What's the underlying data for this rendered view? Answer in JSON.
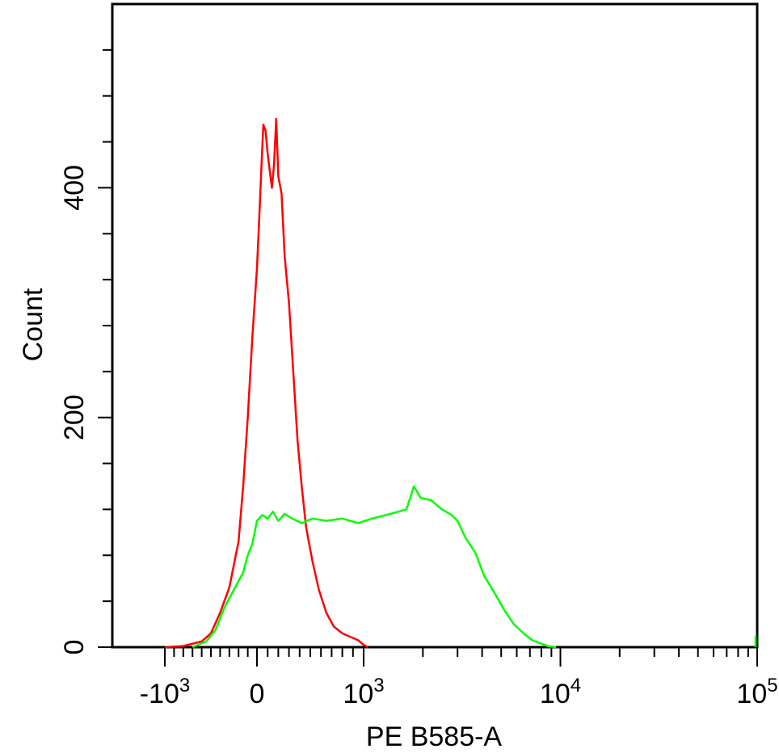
{
  "chart_data": {
    "type": "line",
    "xlabel": "PE B585-A",
    "ylabel": "Count",
    "x_scale": "biexponential",
    "x_ticks": [
      {
        "value": -1000,
        "base": "-10",
        "exp": "3"
      },
      {
        "value": 0,
        "base": "0",
        "exp": ""
      },
      {
        "value": 1000,
        "base": "10",
        "exp": "3"
      },
      {
        "value": 10000,
        "base": "10",
        "exp": "4"
      },
      {
        "value": 100000,
        "base": "10",
        "exp": "5"
      }
    ],
    "y_ticks": [
      {
        "value": 0,
        "label": "0"
      },
      {
        "value": 200,
        "label": "200"
      },
      {
        "value": 400,
        "label": "400"
      }
    ],
    "ylim": [
      0,
      560
    ],
    "grid": false,
    "series": [
      {
        "color": "#ff0000",
        "points": [
          [
            -1000,
            0
          ],
          [
            -800,
            1
          ],
          [
            -600,
            5
          ],
          [
            -500,
            12
          ],
          [
            -400,
            30
          ],
          [
            -300,
            52
          ],
          [
            -200,
            92
          ],
          [
            -150,
            140
          ],
          [
            -100,
            200
          ],
          [
            -50,
            270
          ],
          [
            0,
            330
          ],
          [
            20,
            370
          ],
          [
            40,
            415
          ],
          [
            60,
            455
          ],
          [
            80,
            450
          ],
          [
            100,
            430
          ],
          [
            120,
            415
          ],
          [
            140,
            400
          ],
          [
            160,
            420
          ],
          [
            180,
            460
          ],
          [
            200,
            410
          ],
          [
            230,
            395
          ],
          [
            260,
            340
          ],
          [
            300,
            300
          ],
          [
            340,
            240
          ],
          [
            380,
            180
          ],
          [
            420,
            140
          ],
          [
            460,
            105
          ],
          [
            520,
            75
          ],
          [
            580,
            50
          ],
          [
            650,
            30
          ],
          [
            720,
            18
          ],
          [
            800,
            12
          ],
          [
            900,
            8
          ],
          [
            950,
            6
          ],
          [
            1000,
            2
          ],
          [
            1050,
            0
          ]
        ]
      },
      {
        "color": "#00ff00",
        "points": [
          [
            -700,
            0
          ],
          [
            -550,
            5
          ],
          [
            -450,
            15
          ],
          [
            -350,
            35
          ],
          [
            -250,
            50
          ],
          [
            -150,
            65
          ],
          [
            -100,
            80
          ],
          [
            -50,
            90
          ],
          [
            0,
            110
          ],
          [
            50,
            115
          ],
          [
            100,
            112
          ],
          [
            150,
            118
          ],
          [
            200,
            110
          ],
          [
            260,
            116
          ],
          [
            330,
            112
          ],
          [
            420,
            108
          ],
          [
            520,
            112
          ],
          [
            650,
            110
          ],
          [
            800,
            112
          ],
          [
            950,
            108
          ],
          [
            1100,
            112
          ],
          [
            1300,
            115
          ],
          [
            1500,
            118
          ],
          [
            1650,
            120
          ],
          [
            1800,
            140
          ],
          [
            1950,
            130
          ],
          [
            2200,
            128
          ],
          [
            2500,
            120
          ],
          [
            2800,
            115
          ],
          [
            3000,
            110
          ],
          [
            3300,
            95
          ],
          [
            3700,
            82
          ],
          [
            4100,
            62
          ],
          [
            4600,
            48
          ],
          [
            5200,
            32
          ],
          [
            5800,
            20
          ],
          [
            6500,
            12
          ],
          [
            7200,
            6
          ],
          [
            8000,
            3
          ],
          [
            8600,
            1
          ],
          [
            9500,
            0
          ]
        ]
      }
    ]
  }
}
